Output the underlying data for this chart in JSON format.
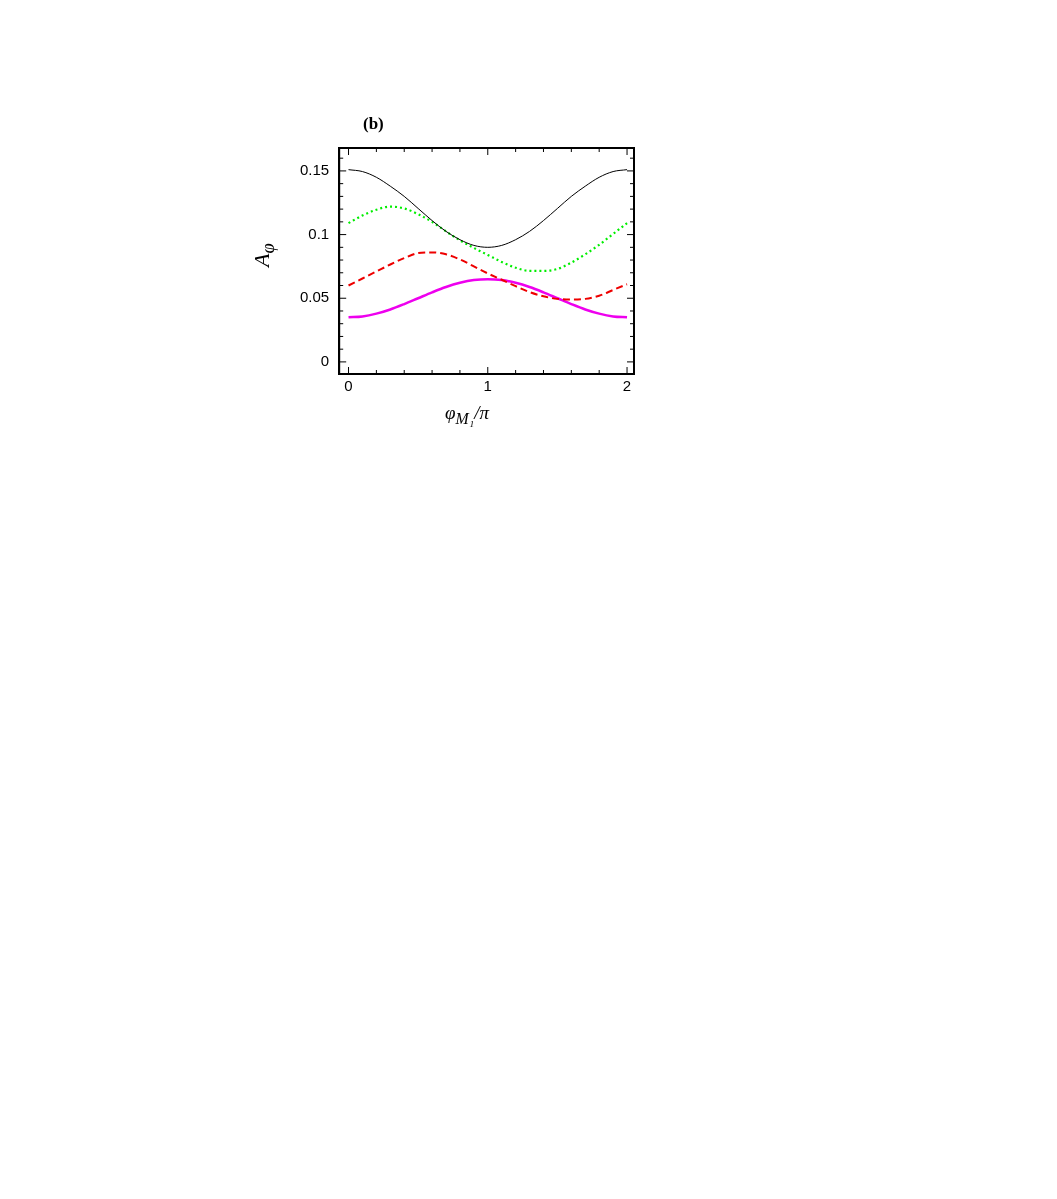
{
  "chart_data": {
    "type": "line",
    "title": "(b)",
    "xlabel": "φ$_{M₁}$/π",
    "ylabel": "A$_{φ}$",
    "x": [
      0,
      0.1,
      0.2,
      0.3,
      0.4,
      0.5,
      0.6,
      0.7,
      0.8,
      0.9,
      1,
      1.1,
      1.2,
      1.3,
      1.4,
      1.5,
      1.6,
      1.7,
      1.8,
      1.9,
      2
    ],
    "series": [
      {
        "color": "#000000",
        "line_style": "solid",
        "values": [
          0.151,
          0.1495,
          0.145,
          0.138,
          0.13,
          0.1205,
          0.111,
          0.1025,
          0.096,
          0.0915,
          0.09,
          0.0915,
          0.096,
          0.1025,
          0.111,
          0.1205,
          0.13,
          0.138,
          0.145,
          0.1495,
          0.151
        ]
      },
      {
        "color": "#00ee00",
        "line_style": "dotted",
        "values": [
          0.109,
          0.115,
          0.1195,
          0.122,
          0.1205,
          0.116,
          0.11,
          0.1025,
          0.0955,
          0.0895,
          0.084,
          0.0785,
          0.074,
          0.0715,
          0.0715,
          0.073,
          0.078,
          0.0845,
          0.092,
          0.1005,
          0.109
        ]
      },
      {
        "color": "#ee0000",
        "line_style": "dashed",
        "values": [
          0.06,
          0.0655,
          0.071,
          0.0765,
          0.0815,
          0.0855,
          0.086,
          0.0845,
          0.0805,
          0.075,
          0.0695,
          0.0645,
          0.0595,
          0.0548,
          0.0515,
          0.0495,
          0.049,
          0.0495,
          0.052,
          0.0565,
          0.061
        ]
      },
      {
        "color": "#ee00ee",
        "line_style": "solid",
        "values": [
          0.035,
          0.0357,
          0.0379,
          0.0412,
          0.0454,
          0.05,
          0.0546,
          0.0588,
          0.0621,
          0.0643,
          0.065,
          0.0643,
          0.0621,
          0.0588,
          0.0546,
          0.05,
          0.0454,
          0.0412,
          0.0379,
          0.0357,
          0.035
        ]
      }
    ],
    "xlim": [
      -0.067,
      2.05
    ],
    "xticks": [
      0,
      {
        "value": 0.2,
        "label": null
      },
      {
        "value": 0.4,
        "label": null
      },
      {
        "value": 0.6,
        "label": null
      },
      {
        "value": 0.8,
        "label": null
      },
      1,
      {
        "value": 1.2,
        "label": null
      },
      {
        "value": 1.4,
        "label": null
      },
      {
        "value": 1.6,
        "label": null
      },
      {
        "value": 1.8,
        "label": null
      },
      2
    ],
    "ylim": [
      -0.0095,
      0.168
    ],
    "yticks": [
      0,
      {
        "value": 0.01,
        "label": null
      },
      {
        "value": 0.02,
        "label": null
      },
      {
        "value": 0.03,
        "label": null
      },
      {
        "value": 0.04,
        "label": null
      },
      0.05,
      {
        "value": 0.06,
        "label": null
      },
      {
        "value": 0.07,
        "label": null
      },
      {
        "value": 0.08,
        "label": null
      },
      {
        "value": 0.09,
        "label": null
      },
      0.1,
      {
        "value": 0.11,
        "label": null
      },
      {
        "value": 0.12,
        "label": null
      },
      {
        "value": 0.13,
        "label": null
      },
      {
        "value": 0.14,
        "label": null
      },
      0.15,
      {
        "value": 0.16,
        "label": null
      }
    ],
    "marker": "none",
    "legend": false
  }
}
